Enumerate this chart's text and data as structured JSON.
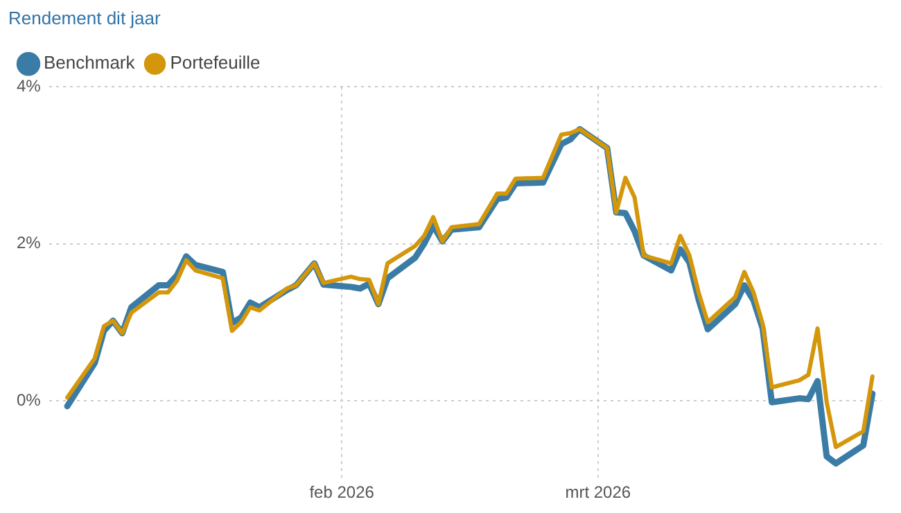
{
  "chart_data": {
    "type": "line",
    "title": "Rendement dit jaar",
    "x": [
      "2026-01-02",
      "2026-01-05",
      "2026-01-06",
      "2026-01-07",
      "2026-01-08",
      "2026-01-09",
      "2026-01-12",
      "2026-01-13",
      "2026-01-14",
      "2026-01-15",
      "2026-01-16",
      "2026-01-19",
      "2026-01-20",
      "2026-01-21",
      "2026-01-22",
      "2026-01-23",
      "2026-01-26",
      "2026-01-27",
      "2026-01-29",
      "2026-01-30",
      "2026-02-02",
      "2026-02-03",
      "2026-02-04",
      "2026-02-05",
      "2026-02-06",
      "2026-02-09",
      "2026-02-10",
      "2026-02-11",
      "2026-02-12",
      "2026-02-13",
      "2026-02-16",
      "2026-02-18",
      "2026-02-19",
      "2026-02-20",
      "2026-02-23",
      "2026-02-25",
      "2026-02-26",
      "2026-02-27",
      "2026-03-02",
      "2026-03-03",
      "2026-03-04",
      "2026-03-05",
      "2026-03-06",
      "2026-03-09",
      "2026-03-10",
      "2026-03-11",
      "2026-03-12",
      "2026-03-13",
      "2026-03-16",
      "2026-03-17",
      "2026-03-18",
      "2026-03-19",
      "2026-03-20",
      "2026-03-23",
      "2026-03-24",
      "2026-03-25",
      "2026-03-26",
      "2026-03-27",
      "2026-03-30",
      "2026-03-31"
    ],
    "series": [
      {
        "name": "Benchmark",
        "color": "#3a7ca5",
        "values": [
          -0.07,
          0.48,
          0.89,
          1.02,
          0.86,
          1.19,
          1.47,
          1.47,
          1.6,
          1.84,
          1.73,
          1.64,
          0.99,
          1.06,
          1.25,
          1.19,
          1.41,
          1.47,
          1.75,
          1.48,
          1.45,
          1.43,
          1.49,
          1.23,
          1.56,
          1.82,
          2.0,
          2.23,
          2.03,
          2.18,
          2.21,
          2.57,
          2.59,
          2.77,
          2.78,
          3.27,
          3.33,
          3.46,
          3.22,
          2.4,
          2.39,
          2.16,
          1.85,
          1.66,
          1.93,
          1.76,
          1.29,
          0.91,
          1.23,
          1.47,
          1.28,
          0.92,
          -0.02,
          0.03,
          0.02,
          0.25,
          -0.71,
          -0.8,
          -0.57,
          0.09
        ]
      },
      {
        "name": "Portefeuille",
        "color": "#d4960a",
        "values": [
          0.04,
          0.54,
          0.95,
          1.02,
          0.86,
          1.12,
          1.38,
          1.38,
          1.53,
          1.79,
          1.66,
          1.56,
          0.89,
          1.0,
          1.19,
          1.15,
          1.43,
          1.47,
          1.75,
          1.5,
          1.58,
          1.55,
          1.54,
          1.23,
          1.75,
          1.97,
          2.1,
          2.34,
          2.03,
          2.21,
          2.25,
          2.64,
          2.64,
          2.83,
          2.84,
          3.39,
          3.41,
          3.46,
          3.22,
          2.4,
          2.84,
          2.59,
          1.85,
          1.75,
          2.1,
          1.85,
          1.38,
          1.0,
          1.32,
          1.64,
          1.38,
          0.98,
          0.17,
          0.26,
          0.33,
          0.92,
          -0.02,
          -0.59,
          -0.39,
          0.31
        ]
      }
    ],
    "xlim": [
      "2025-12-31",
      "2026-04-01"
    ],
    "xticks": [
      {
        "value": "2026-02-01",
        "label": "feb 2026"
      },
      {
        "value": "2026-03-01",
        "label": "mrt 2026"
      }
    ],
    "ylim": [
      -1,
      4
    ],
    "yticks": [
      {
        "value": 0,
        "label": "0%"
      },
      {
        "value": 2,
        "label": "2%"
      },
      {
        "value": 4,
        "label": "4%"
      }
    ],
    "grid": true,
    "legend": "top left",
    "marker": "none",
    "line_style": "solid"
  }
}
